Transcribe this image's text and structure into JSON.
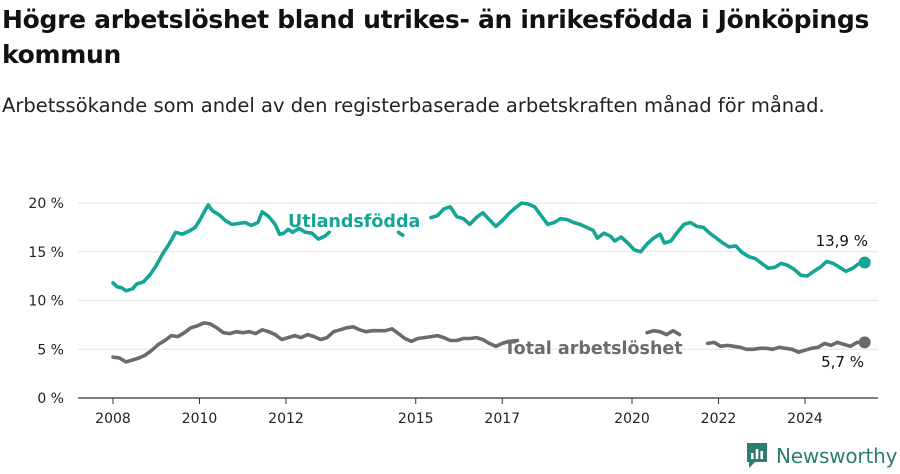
{
  "header": {
    "title": "Högre arbetslöshet bland utrikes- än inrikesfödda i Jönköpings kommun",
    "subtitle": "Arbetssökande som andel av den registerbaserade arbetskraften månad för månad."
  },
  "brand": {
    "name": "Newsworthy",
    "color": "#2e7d6e",
    "icon": "newsworthy-logo-icon"
  },
  "chart_data": {
    "type": "line",
    "y_ticks": [
      "0 %",
      "5 %",
      "10 %",
      "15 %",
      "20 %"
    ],
    "ylim": [
      0,
      20
    ],
    "x_ticks": [
      {
        "label": "2008",
        "year": 2008
      },
      {
        "label": "2010",
        "year": 2010
      },
      {
        "label": "2012",
        "year": 2012
      },
      {
        "label": "2015",
        "year": 2015
      },
      {
        "label": "2017",
        "year": 2017
      },
      {
        "label": "2020",
        "year": 2020
      },
      {
        "label": "2022",
        "year": 2022
      },
      {
        "label": "2024",
        "year": 2024
      }
    ],
    "xlim": [
      2007.6,
      2025.5
    ],
    "grid": true,
    "series": [
      {
        "name": "Utlandsfödda",
        "color": "#14a595",
        "end_label": "13,9 %",
        "points": [
          [
            2008.0,
            11.8
          ],
          [
            2008.1,
            11.4
          ],
          [
            2008.2,
            11.3
          ],
          [
            2008.3,
            11.0
          ],
          [
            2008.45,
            11.2
          ],
          [
            2008.55,
            11.7
          ],
          [
            2008.7,
            11.9
          ],
          [
            2008.85,
            12.6
          ],
          [
            2009.0,
            13.6
          ],
          [
            2009.15,
            14.8
          ],
          [
            2009.3,
            15.8
          ],
          [
            2009.45,
            17.0
          ],
          [
            2009.6,
            16.8
          ],
          [
            2009.75,
            17.1
          ],
          [
            2009.9,
            17.5
          ],
          [
            2010.0,
            18.2
          ],
          [
            2010.1,
            19.0
          ],
          [
            2010.2,
            19.8
          ],
          [
            2010.3,
            19.2
          ],
          [
            2010.45,
            18.8
          ],
          [
            2010.6,
            18.2
          ],
          [
            2010.75,
            17.8
          ],
          [
            2010.9,
            17.9
          ],
          [
            2011.05,
            18.0
          ],
          [
            2011.2,
            17.7
          ],
          [
            2011.35,
            18.0
          ],
          [
            2011.45,
            19.1
          ],
          [
            2011.6,
            18.6
          ],
          [
            2011.75,
            17.8
          ],
          [
            2011.85,
            16.8
          ],
          [
            2011.95,
            16.9
          ],
          [
            2012.05,
            17.3
          ],
          [
            2012.15,
            17.0
          ],
          [
            2012.3,
            17.4
          ],
          [
            2012.45,
            17.0
          ],
          [
            2012.6,
            16.9
          ],
          [
            2012.75,
            16.3
          ],
          [
            2012.9,
            16.6
          ],
          [
            2013.0,
            17.0
          ]
        ],
        "points_2": [
          [
            2014.6,
            17.0
          ],
          [
            2014.7,
            16.7
          ]
        ],
        "points_3": [
          [
            2015.35,
            18.5
          ],
          [
            2015.5,
            18.7
          ],
          [
            2015.65,
            19.4
          ],
          [
            2015.8,
            19.6
          ],
          [
            2015.95,
            18.6
          ],
          [
            2016.1,
            18.4
          ],
          [
            2016.25,
            17.8
          ],
          [
            2016.4,
            18.5
          ],
          [
            2016.55,
            19.0
          ],
          [
            2016.7,
            18.3
          ],
          [
            2016.85,
            17.6
          ],
          [
            2017.0,
            18.2
          ],
          [
            2017.15,
            18.9
          ],
          [
            2017.3,
            19.5
          ],
          [
            2017.45,
            20.0
          ],
          [
            2017.6,
            19.9
          ],
          [
            2017.75,
            19.6
          ],
          [
            2017.9,
            18.7
          ],
          [
            2018.05,
            17.8
          ],
          [
            2018.2,
            18.0
          ],
          [
            2018.35,
            18.4
          ],
          [
            2018.5,
            18.3
          ],
          [
            2018.65,
            18.0
          ],
          [
            2018.8,
            17.8
          ],
          [
            2018.95,
            17.5
          ],
          [
            2019.1,
            17.2
          ],
          [
            2019.2,
            16.4
          ],
          [
            2019.35,
            16.9
          ],
          [
            2019.5,
            16.6
          ],
          [
            2019.6,
            16.1
          ],
          [
            2019.75,
            16.5
          ],
          [
            2019.9,
            15.9
          ],
          [
            2020.05,
            15.2
          ],
          [
            2020.2,
            15.0
          ],
          [
            2020.35,
            15.8
          ],
          [
            2020.5,
            16.4
          ],
          [
            2020.65,
            16.8
          ],
          [
            2020.75,
            15.9
          ],
          [
            2020.9,
            16.1
          ],
          [
            2021.05,
            17.0
          ],
          [
            2021.2,
            17.8
          ],
          [
            2021.35,
            18.0
          ],
          [
            2021.5,
            17.6
          ],
          [
            2021.65,
            17.5
          ],
          [
            2021.8,
            16.9
          ],
          [
            2021.95,
            16.4
          ],
          [
            2022.1,
            15.9
          ],
          [
            2022.25,
            15.5
          ],
          [
            2022.4,
            15.6
          ],
          [
            2022.55,
            14.9
          ],
          [
            2022.7,
            14.5
          ],
          [
            2022.85,
            14.3
          ],
          [
            2023.0,
            13.8
          ],
          [
            2023.15,
            13.3
          ],
          [
            2023.3,
            13.4
          ],
          [
            2023.45,
            13.8
          ],
          [
            2023.6,
            13.6
          ],
          [
            2023.75,
            13.2
          ],
          [
            2023.9,
            12.6
          ],
          [
            2024.05,
            12.5
          ],
          [
            2024.2,
            13.0
          ],
          [
            2024.35,
            13.4
          ],
          [
            2024.5,
            14.0
          ],
          [
            2024.65,
            13.8
          ],
          [
            2024.8,
            13.4
          ],
          [
            2024.95,
            13.0
          ],
          [
            2025.1,
            13.3
          ],
          [
            2025.25,
            13.8
          ],
          [
            2025.38,
            13.9
          ]
        ],
        "label": "Utlandsfödda"
      },
      {
        "name": "Total arbetslöshet",
        "color": "#6b6b6f",
        "end_label": "5,7 %",
        "points": [
          [
            2008.0,
            4.2
          ],
          [
            2008.15,
            4.1
          ],
          [
            2008.3,
            3.7
          ],
          [
            2008.45,
            3.9
          ],
          [
            2008.6,
            4.1
          ],
          [
            2008.75,
            4.4
          ],
          [
            2008.9,
            4.9
          ],
          [
            2009.05,
            5.5
          ],
          [
            2009.2,
            5.9
          ],
          [
            2009.35,
            6.4
          ],
          [
            2009.5,
            6.3
          ],
          [
            2009.65,
            6.7
          ],
          [
            2009.8,
            7.2
          ],
          [
            2009.95,
            7.4
          ],
          [
            2010.1,
            7.7
          ],
          [
            2010.25,
            7.6
          ],
          [
            2010.4,
            7.2
          ],
          [
            2010.55,
            6.7
          ],
          [
            2010.7,
            6.6
          ],
          [
            2010.85,
            6.8
          ],
          [
            2011.0,
            6.7
          ],
          [
            2011.15,
            6.8
          ],
          [
            2011.3,
            6.6
          ],
          [
            2011.45,
            7.0
          ],
          [
            2011.6,
            6.8
          ],
          [
            2011.75,
            6.5
          ],
          [
            2011.9,
            6.0
          ],
          [
            2012.05,
            6.2
          ],
          [
            2012.2,
            6.4
          ],
          [
            2012.35,
            6.2
          ],
          [
            2012.5,
            6.5
          ],
          [
            2012.65,
            6.3
          ],
          [
            2012.8,
            6.0
          ],
          [
            2012.95,
            6.2
          ],
          [
            2013.1,
            6.8
          ],
          [
            2013.25,
            7.0
          ],
          [
            2013.4,
            7.2
          ],
          [
            2013.55,
            7.3
          ],
          [
            2013.7,
            7.0
          ],
          [
            2013.85,
            6.8
          ],
          [
            2014.0,
            6.9
          ],
          [
            2014.15,
            6.9
          ],
          [
            2014.3,
            6.9
          ],
          [
            2014.45,
            7.1
          ],
          [
            2014.6,
            6.6
          ],
          [
            2014.75,
            6.1
          ],
          [
            2014.9,
            5.8
          ],
          [
            2015.05,
            6.1
          ],
          [
            2015.2,
            6.2
          ],
          [
            2015.35,
            6.3
          ],
          [
            2015.5,
            6.4
          ],
          [
            2015.65,
            6.2
          ],
          [
            2015.8,
            5.9
          ],
          [
            2015.95,
            5.9
          ],
          [
            2016.1,
            6.1
          ],
          [
            2016.25,
            6.1
          ],
          [
            2016.4,
            6.2
          ],
          [
            2016.55,
            6.0
          ],
          [
            2016.7,
            5.6
          ],
          [
            2016.85,
            5.3
          ],
          [
            2017.0,
            5.6
          ],
          [
            2017.15,
            5.8
          ],
          [
            2017.35,
            5.9
          ]
        ],
        "points_2": [
          [
            2020.35,
            6.7
          ],
          [
            2020.5,
            6.9
          ],
          [
            2020.65,
            6.8
          ],
          [
            2020.8,
            6.5
          ],
          [
            2020.95,
            6.9
          ],
          [
            2021.1,
            6.5
          ]
        ],
        "points_3": [
          [
            2021.75,
            5.6
          ],
          [
            2021.9,
            5.7
          ],
          [
            2022.05,
            5.3
          ],
          [
            2022.2,
            5.4
          ],
          [
            2022.35,
            5.3
          ],
          [
            2022.5,
            5.2
          ],
          [
            2022.65,
            5.0
          ],
          [
            2022.8,
            5.0
          ],
          [
            2022.95,
            5.1
          ],
          [
            2023.1,
            5.1
          ],
          [
            2023.25,
            5.0
          ],
          [
            2023.4,
            5.2
          ],
          [
            2023.55,
            5.1
          ],
          [
            2023.7,
            5.0
          ],
          [
            2023.85,
            4.7
          ],
          [
            2024.0,
            4.9
          ],
          [
            2024.15,
            5.1
          ],
          [
            2024.3,
            5.2
          ],
          [
            2024.45,
            5.6
          ],
          [
            2024.6,
            5.4
          ],
          [
            2024.75,
            5.7
          ],
          [
            2024.9,
            5.5
          ],
          [
            2025.05,
            5.3
          ],
          [
            2025.2,
            5.7
          ],
          [
            2025.38,
            5.7
          ]
        ],
        "label": "Total arbetslöshet"
      }
    ]
  }
}
